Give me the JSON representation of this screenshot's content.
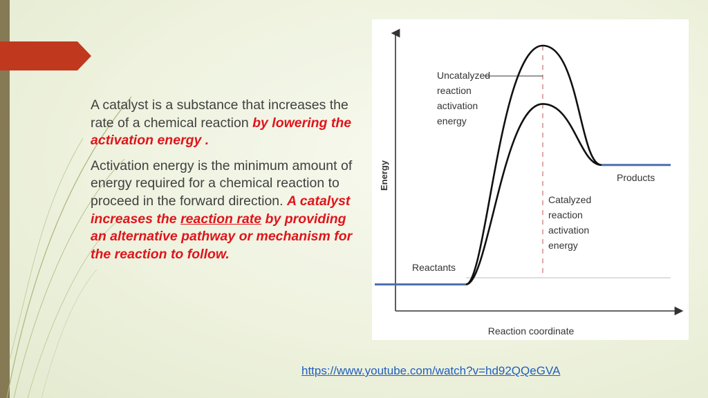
{
  "paragraph1": {
    "text": "A catalyst is a substance that increases the rate of a chemical reaction ",
    "highlight": "by lowering the activation energy ."
  },
  "paragraph2": {
    "text": "Activation energy is the minimum amount of energy required for a chemical reaction to proceed in the forward direction. ",
    "highlight_a": "A catalyst increases the ",
    "highlight_link": "reaction rate",
    "highlight_b": " by providing an alternative pathway or mechanism for the reaction to follow."
  },
  "chart_data": {
    "type": "line",
    "ylabel": "Energy",
    "xlabel": "Reaction coordinate",
    "annotations": {
      "uncatalyzed": [
        "Uncatalyzed",
        "reaction",
        "activation",
        "energy"
      ],
      "catalyzed": [
        "Catalyzed",
        "reaction",
        "activation",
        "energy"
      ],
      "reactants": "Reactants",
      "products": "Products"
    },
    "levels": {
      "reactants": 0.1,
      "products": 0.55,
      "uncatalyzed_peak": 1.0,
      "catalyzed_peak": 0.78
    },
    "colors": {
      "level_lines": "#4a6fae",
      "curves": "#111111"
    }
  },
  "link": {
    "url": "https://www.youtube.com/watch?v=hd92QQeGVA"
  }
}
